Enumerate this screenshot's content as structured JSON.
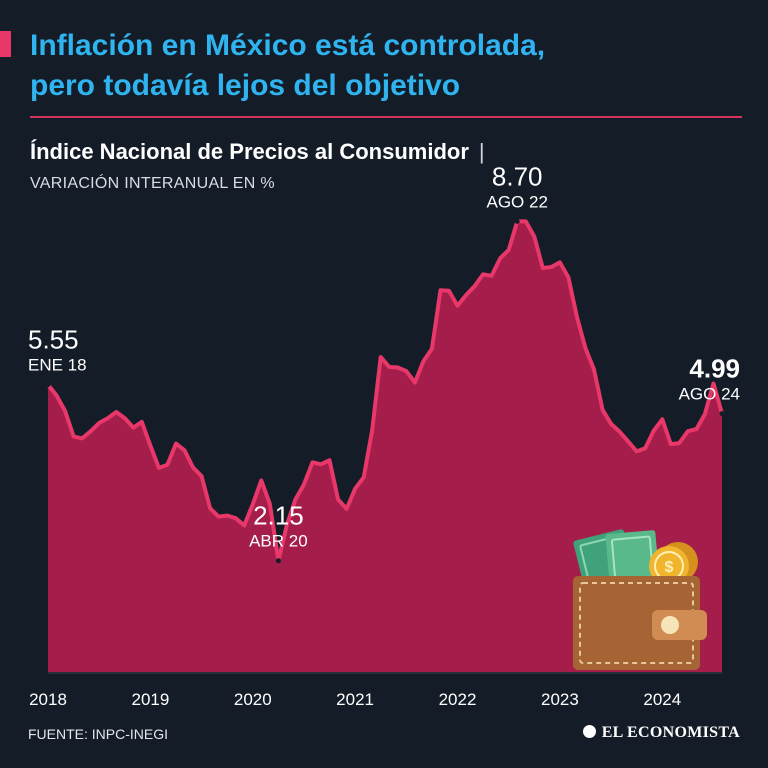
{
  "header": {
    "title_line1": "Inflación en México está controlada,",
    "title_line2": "pero todavía lejos del objetivo",
    "accent_color": "#e8386a",
    "title_color": "#2fb4ef"
  },
  "chart_header": {
    "subtitle": "Índice Nacional de Precios al Consumidor",
    "separator": "|",
    "unit": "VARIACIÓN INTERANUAL EN %"
  },
  "footer": {
    "source": "FUENTE: INPC-INEGI",
    "brand": "EL ECONOMISTA",
    "brand_icon": "globe-icon"
  },
  "decoration": {
    "icon": "wallet-with-money-icon"
  },
  "chart_data": {
    "type": "area",
    "fill_color": "#a51d4a",
    "line_color": "#e8386a",
    "background": "#141c28",
    "x_ticks": [
      "2018",
      "2019",
      "2020",
      "2021",
      "2022",
      "2023",
      "2024"
    ],
    "y_range": [
      0,
      9.5
    ],
    "grid": false,
    "legend": "none",
    "series": [
      {
        "x_start": "2018-01",
        "x_end": "2024-08",
        "frequency": "monthly",
        "values": [
          5.55,
          5.34,
          5.04,
          4.55,
          4.51,
          4.65,
          4.81,
          4.9,
          5.02,
          4.9,
          4.72,
          4.83,
          4.37,
          3.94,
          4.0,
          4.41,
          4.28,
          3.95,
          3.78,
          3.16,
          3.0,
          3.02,
          2.97,
          2.83,
          3.24,
          3.7,
          3.25,
          2.15,
          2.84,
          3.33,
          3.62,
          4.05,
          4.01,
          4.09,
          3.33,
          3.15,
          3.54,
          3.76,
          4.67,
          6.08,
          5.89,
          5.88,
          5.81,
          5.59,
          6.0,
          6.24,
          7.37,
          7.36,
          7.07,
          7.28,
          7.45,
          7.68,
          7.65,
          7.99,
          8.15,
          8.7,
          8.7,
          8.41,
          7.8,
          7.82,
          7.91,
          7.62,
          6.85,
          6.25,
          5.84,
          5.06,
          4.79,
          4.64,
          4.45,
          4.26,
          4.32,
          4.66,
          4.88,
          4.4,
          4.42,
          4.65,
          4.69,
          4.98,
          5.57,
          4.99
        ],
        "annotations": [
          {
            "value": "5.55",
            "label": "ENE 18",
            "index": 0
          },
          {
            "value": "2.15",
            "label": "ABR 20",
            "index": 27
          },
          {
            "value": "8.70",
            "label": "AGO 22",
            "index": 55
          },
          {
            "value": "4.99",
            "label": "AGO 24",
            "index": 79
          }
        ]
      }
    ]
  }
}
